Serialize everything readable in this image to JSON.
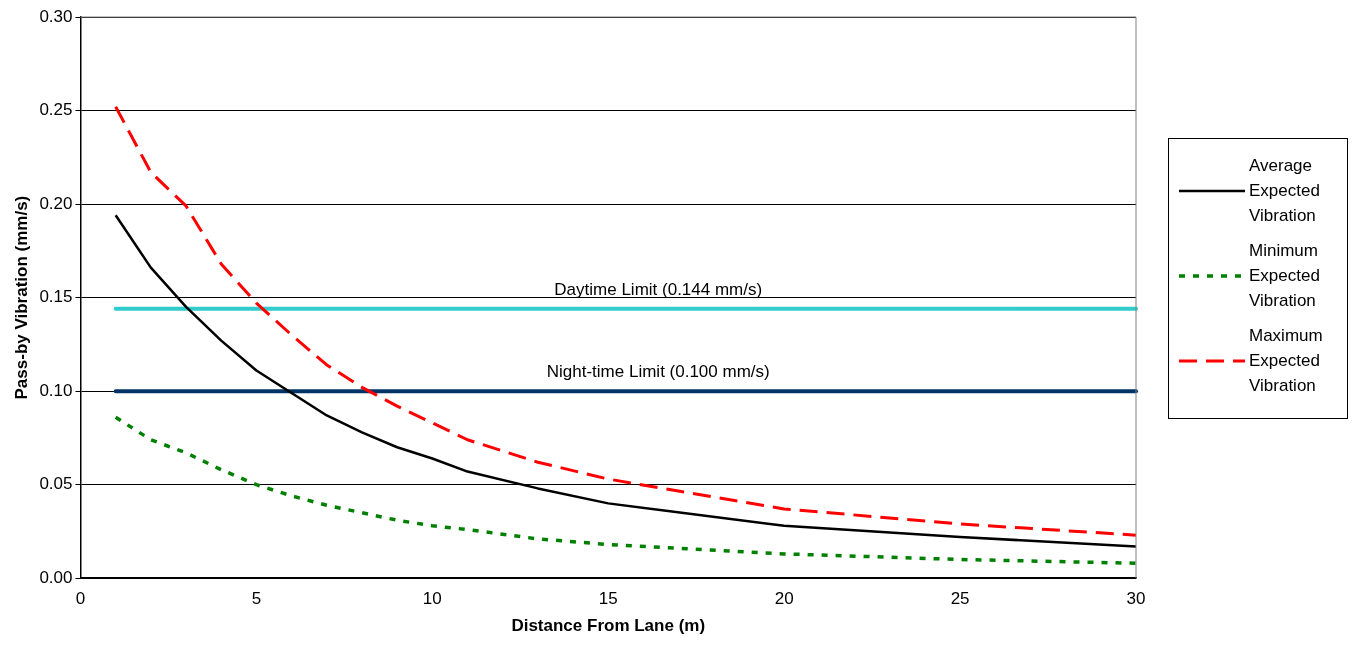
{
  "chart_data": {
    "type": "line",
    "xlabel": "Distance From Lane (m)",
    "ylabel": "Pass-by Vibration (mm/s)",
    "x": [
      1,
      2,
      3,
      4,
      5,
      6,
      7,
      8,
      9,
      10,
      11,
      13,
      15,
      20,
      25,
      30
    ],
    "series": [
      {
        "name": "Average Expected Vibration",
        "color": "#000000",
        "line_style": "solid",
        "values": [
          0.194,
          0.166,
          0.145,
          0.127,
          0.111,
          0.099,
          0.087,
          0.078,
          0.07,
          0.064,
          0.057,
          0.048,
          0.04,
          0.028,
          0.022,
          0.017
        ]
      },
      {
        "name": "Minimum Expected Vibration",
        "color": "#008000",
        "line_style": "dotted",
        "values": [
          0.086,
          0.074,
          0.067,
          0.058,
          0.05,
          0.044,
          0.039,
          0.035,
          0.031,
          0.028,
          0.026,
          0.021,
          0.018,
          0.013,
          0.01,
          0.008
        ]
      },
      {
        "name": "Maximum Expected Vibration",
        "color": "#ff0000",
        "line_style": "dashed",
        "values": [
          0.252,
          0.217,
          0.199,
          0.168,
          0.147,
          0.13,
          0.114,
          0.102,
          0.092,
          0.083,
          0.074,
          0.062,
          0.053,
          0.037,
          0.029,
          0.023
        ]
      }
    ],
    "ref_lines": [
      {
        "axis": "y",
        "value": 0.144,
        "label": "Daytime Limit (0.144 mm/s)",
        "color": "#33cccc"
      },
      {
        "axis": "y",
        "value": 0.1,
        "label": "Night-time Limit (0.100 mm/s)",
        "color": "#003366"
      }
    ],
    "xlim": [
      0,
      30
    ],
    "xticks": [
      0,
      5,
      10,
      15,
      20,
      25,
      30
    ],
    "ylim": [
      0,
      0.3
    ],
    "yticks": [
      {
        "value": 0,
        "label": "0.00"
      },
      {
        "value": 0.05,
        "label": "0.05"
      },
      {
        "value": 0.1,
        "label": "0.10"
      },
      {
        "value": 0.15,
        "label": "0.15"
      },
      {
        "value": 0.2,
        "label": "0.20"
      },
      {
        "value": 0.25,
        "label": "0.25"
      },
      {
        "value": 0.3,
        "label": "0.30"
      }
    ],
    "grid": "y",
    "legend": "right",
    "marker": "none"
  }
}
